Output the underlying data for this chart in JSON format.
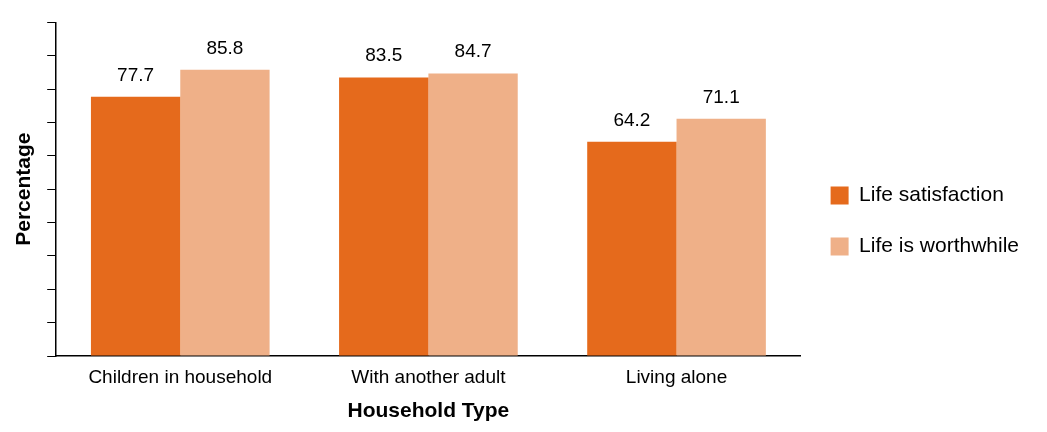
{
  "chart_data": {
    "type": "bar",
    "xlabel": "Household Type",
    "ylabel": "Percentage",
    "categories": [
      "Children in household",
      "With another adult",
      "Living alone"
    ],
    "series": [
      {
        "name": "Life satisfaction",
        "color": "#e56a1c",
        "values": [
          77.7,
          83.5,
          64.2
        ]
      },
      {
        "name": "Life is worthwhile",
        "color": "#efb088",
        "values": [
          85.8,
          84.7,
          71.1
        ]
      }
    ],
    "ylim": [
      0,
      100
    ],
    "yticks": [
      {
        "value": 0,
        "label": null
      },
      {
        "value": 10,
        "label": null
      },
      {
        "value": 20,
        "label": null
      },
      {
        "value": 30,
        "label": null
      },
      {
        "value": 40,
        "label": null
      },
      {
        "value": 50,
        "label": null
      },
      {
        "value": 60,
        "label": null
      },
      {
        "value": 70,
        "label": null
      },
      {
        "value": 80,
        "label": null
      },
      {
        "value": 90,
        "label": null
      },
      {
        "value": 100,
        "label": null
      }
    ],
    "tick_labels": "x",
    "data_labels": true,
    "legend": "right",
    "grid": false
  }
}
